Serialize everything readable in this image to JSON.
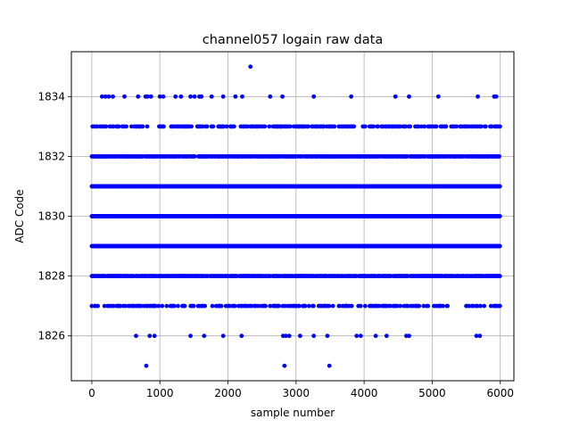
{
  "chart_data": {
    "type": "scatter",
    "title": "channel057 logain raw data",
    "xlabel": "sample number",
    "ylabel": "ADC Code",
    "xlim": [
      -300,
      6200
    ],
    "ylim": [
      1824.5,
      1835.5
    ],
    "xticks": [
      0,
      1000,
      2000,
      3000,
      4000,
      5000,
      6000
    ],
    "yticks": [
      1826,
      1828,
      1830,
      1832,
      1834
    ],
    "grid": true,
    "marker_color": "#0000ff",
    "total_samples": 6000,
    "levels": [
      {
        "y": 1828,
        "band": "dense"
      },
      {
        "y": 1829,
        "band": "continuous"
      },
      {
        "y": 1830,
        "band": "continuous"
      },
      {
        "y": 1831,
        "band": "continuous"
      },
      {
        "y": 1832,
        "band": "dense"
      },
      {
        "y": 1827,
        "band": "sparse"
      },
      {
        "y": 1833,
        "band": "sparse"
      }
    ],
    "points": [
      [
        2330,
        1835
      ],
      [
        150,
        1834
      ],
      [
        200,
        1834
      ],
      [
        250,
        1834
      ],
      [
        310,
        1834
      ],
      [
        480,
        1834
      ],
      [
        680,
        1834
      ],
      [
        790,
        1834
      ],
      [
        820,
        1834
      ],
      [
        870,
        1834
      ],
      [
        1000,
        1834
      ],
      [
        1050,
        1834
      ],
      [
        1230,
        1834
      ],
      [
        1310,
        1834
      ],
      [
        1450,
        1834
      ],
      [
        1510,
        1834
      ],
      [
        1580,
        1834
      ],
      [
        1610,
        1834
      ],
      [
        1760,
        1834
      ],
      [
        1930,
        1834
      ],
      [
        2110,
        1834
      ],
      [
        2210,
        1834
      ],
      [
        2620,
        1834
      ],
      [
        2800,
        1834
      ],
      [
        3260,
        1834
      ],
      [
        3810,
        1834
      ],
      [
        4460,
        1834
      ],
      [
        4660,
        1834
      ],
      [
        5090,
        1834
      ],
      [
        5670,
        1834
      ],
      [
        5910,
        1834
      ],
      [
        5940,
        1834
      ],
      [
        650,
        1826
      ],
      [
        850,
        1826
      ],
      [
        920,
        1826
      ],
      [
        1450,
        1826
      ],
      [
        1650,
        1826
      ],
      [
        1930,
        1826
      ],
      [
        2200,
        1826
      ],
      [
        2810,
        1826
      ],
      [
        2850,
        1826
      ],
      [
        2900,
        1826
      ],
      [
        3060,
        1826
      ],
      [
        3260,
        1826
      ],
      [
        3460,
        1826
      ],
      [
        3890,
        1826
      ],
      [
        3950,
        1826
      ],
      [
        4170,
        1826
      ],
      [
        4330,
        1826
      ],
      [
        4620,
        1826
      ],
      [
        4660,
        1826
      ],
      [
        5650,
        1826
      ],
      [
        5700,
        1826
      ],
      [
        800,
        1825
      ],
      [
        2830,
        1825
      ],
      [
        3490,
        1825
      ]
    ]
  }
}
